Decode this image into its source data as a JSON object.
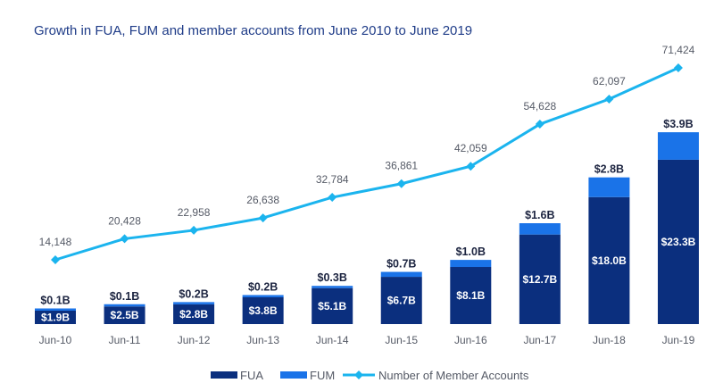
{
  "chart_data": {
    "type": "bar",
    "title": "Growth in FUA, FUM and member accounts from June 2010 to June 2019",
    "categories": [
      "Jun-10",
      "Jun-11",
      "Jun-12",
      "Jun-13",
      "Jun-14",
      "Jun-15",
      "Jun-16",
      "Jun-17",
      "Jun-18",
      "Jun-19"
    ],
    "series": [
      {
        "name": "FUA",
        "kind": "bar",
        "stack": true,
        "color": "#0b2f7e",
        "values": [
          1.9,
          2.5,
          2.8,
          3.8,
          5.1,
          6.7,
          8.1,
          12.7,
          18.0,
          23.3
        ],
        "labels": [
          "$1.9B",
          "$2.5B",
          "$2.8B",
          "$3.8B",
          "$5.1B",
          "$6.7B",
          "$8.1B",
          "$12.7B",
          "$18.0B",
          "$23.3B"
        ]
      },
      {
        "name": "FUM",
        "kind": "bar",
        "stack": true,
        "color": "#1a73e8",
        "values": [
          0.1,
          0.1,
          0.2,
          0.2,
          0.3,
          0.7,
          1.0,
          1.6,
          2.8,
          3.9
        ],
        "labels": [
          "$0.1B",
          "$0.1B",
          "$0.2B",
          "$0.2B",
          "$0.3B",
          "$0.7B",
          "$1.0B",
          "$1.6B",
          "$2.8B",
          "$3.9B"
        ]
      },
      {
        "name": "Number of Member Accounts",
        "kind": "line",
        "color": "#1bb4ee",
        "values": [
          14148,
          20428,
          22958,
          26638,
          32784,
          36861,
          42059,
          54628,
          62097,
          71424
        ],
        "labels": [
          "14,148",
          "20,428",
          "22,958",
          "26,638",
          "32,784",
          "36,861",
          "42,059",
          "54,628",
          "62,097",
          "71,424"
        ]
      }
    ],
    "legend_position": "bottom-center",
    "grid": false
  }
}
